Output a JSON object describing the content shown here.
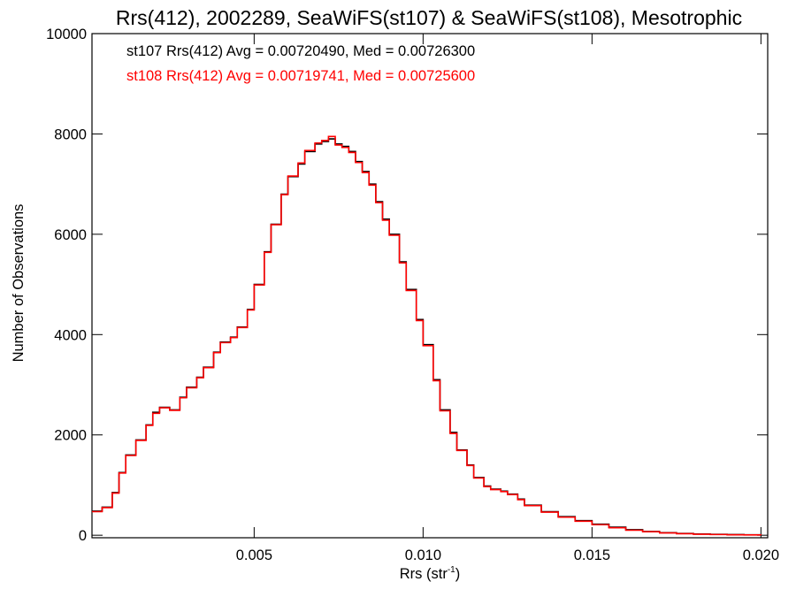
{
  "chart_data": {
    "type": "line",
    "title": "Rrs(412), 2002289, SeaWiFS(st107) & SeaWiFS(st108), Mesotrophic",
    "xlabel": "Rrs (str",
    "xlabel_sup": "-1",
    "xlabel_close": ")",
    "ylabel": "Number of Observations",
    "xlim": [
      0.0002,
      0.0202
    ],
    "ylim": [
      -50,
      10000
    ],
    "x_ticks": [
      0.005,
      0.01,
      0.015,
      0.02
    ],
    "x_tick_labels": [
      "0.005",
      "0.010",
      "0.015",
      "0.020"
    ],
    "y_ticks": [
      0,
      2000,
      4000,
      6000,
      8000,
      10000
    ],
    "y_tick_labels": [
      "0",
      "2000",
      "4000",
      "6000",
      "8000",
      "10000"
    ],
    "grid": false,
    "legend_position": "top-left",
    "annotations": [
      "st107 Rrs(412) Avg = 0.00720490, Med = 0.00726300",
      "st108 Rrs(412) Avg = 0.00719741, Med = 0.00725600"
    ],
    "series": [
      {
        "color": "#000000",
        "x": [
          0.0002,
          0.0005,
          0.0008,
          0.001,
          0.0012,
          0.0015,
          0.0018,
          0.002,
          0.0022,
          0.0025,
          0.0028,
          0.003,
          0.0033,
          0.0035,
          0.0038,
          0.004,
          0.0043,
          0.0045,
          0.0048,
          0.005,
          0.0053,
          0.0055,
          0.0058,
          0.006,
          0.0063,
          0.0065,
          0.0068,
          0.007,
          0.0072,
          0.0074,
          0.0076,
          0.0078,
          0.008,
          0.0082,
          0.0084,
          0.0086,
          0.0088,
          0.009,
          0.0093,
          0.0095,
          0.0098,
          0.01,
          0.0103,
          0.0105,
          0.0108,
          0.011,
          0.0113,
          0.0115,
          0.0118,
          0.012,
          0.0123,
          0.0125,
          0.0128,
          0.013,
          0.0135,
          0.014,
          0.0145,
          0.015,
          0.0155,
          0.016,
          0.0165,
          0.017,
          0.0175,
          0.018,
          0.0185,
          0.019,
          0.0195,
          0.02
        ],
        "y": [
          480,
          560,
          850,
          1250,
          1600,
          1900,
          2200,
          2450,
          2550,
          2500,
          2750,
          2950,
          3150,
          3350,
          3650,
          3850,
          3950,
          4150,
          4500,
          5000,
          5650,
          6200,
          6800,
          7150,
          7400,
          7650,
          7800,
          7850,
          7900,
          7800,
          7750,
          7650,
          7450,
          7250,
          7000,
          6650,
          6300,
          6000,
          5450,
          4900,
          4300,
          3800,
          3100,
          2500,
          2050,
          1700,
          1400,
          1150,
          980,
          920,
          880,
          820,
          720,
          600,
          470,
          370,
          290,
          220,
          160,
          110,
          75,
          50,
          35,
          25,
          18,
          12,
          8,
          5
        ]
      },
      {
        "color": "#ff0000",
        "x": [
          0.0002,
          0.0005,
          0.0008,
          0.001,
          0.0012,
          0.0015,
          0.0018,
          0.002,
          0.0022,
          0.0025,
          0.0028,
          0.003,
          0.0033,
          0.0035,
          0.0038,
          0.004,
          0.0043,
          0.0045,
          0.0048,
          0.005,
          0.0053,
          0.0055,
          0.0058,
          0.006,
          0.0063,
          0.0065,
          0.0068,
          0.007,
          0.0072,
          0.0074,
          0.0076,
          0.0078,
          0.008,
          0.0082,
          0.0084,
          0.0086,
          0.0088,
          0.009,
          0.0093,
          0.0095,
          0.0098,
          0.01,
          0.0103,
          0.0105,
          0.0108,
          0.011,
          0.0113,
          0.0115,
          0.0118,
          0.012,
          0.0123,
          0.0125,
          0.0128,
          0.013,
          0.0135,
          0.014,
          0.0145,
          0.015,
          0.0155,
          0.016,
          0.0165,
          0.017,
          0.0175,
          0.018,
          0.0185,
          0.019,
          0.0195,
          0.02
        ],
        "y": [
          470,
          550,
          840,
          1240,
          1590,
          1890,
          2190,
          2430,
          2540,
          2490,
          2740,
          2940,
          3140,
          3340,
          3640,
          3840,
          3940,
          4140,
          4490,
          4990,
          5640,
          6190,
          6790,
          7160,
          7420,
          7670,
          7820,
          7870,
          7950,
          7780,
          7730,
          7630,
          7430,
          7230,
          6980,
          6630,
          6280,
          5980,
          5430,
          4880,
          4280,
          3780,
          3080,
          2480,
          2030,
          1690,
          1390,
          1140,
          970,
          910,
          870,
          810,
          710,
          590,
          460,
          360,
          280,
          210,
          150,
          100,
          70,
          45,
          30,
          20,
          14,
          9,
          6,
          4
        ]
      }
    ]
  }
}
